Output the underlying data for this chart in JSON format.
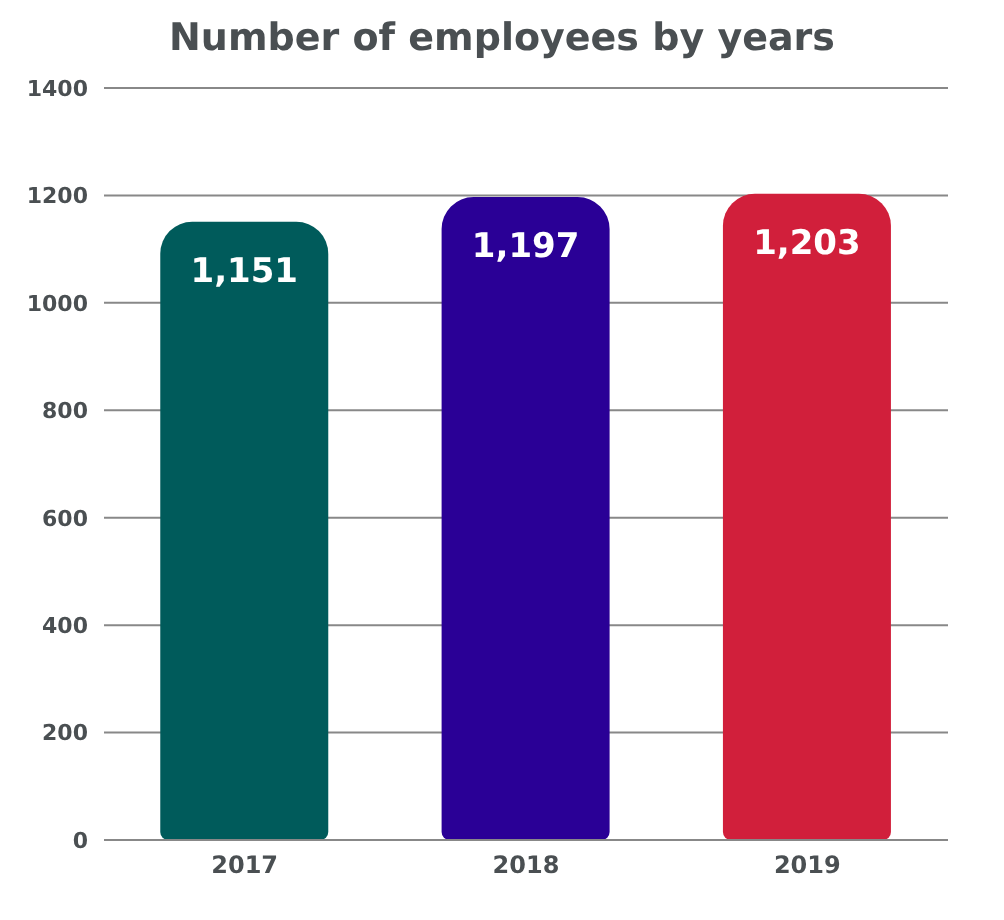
{
  "chart_data": {
    "type": "bar",
    "title": "Number of employees by years",
    "categories": [
      "2017",
      "2018",
      "2019"
    ],
    "values": [
      1151,
      1197,
      1203
    ],
    "colors": [
      "#005b5b",
      "#2a0096",
      "#d11f3b"
    ],
    "value_labels": [
      "1,151",
      "1,197",
      "1,203"
    ],
    "ylim": [
      0,
      1400
    ],
    "yticks": [
      0,
      200,
      400,
      600,
      800,
      1000,
      1200,
      1400
    ],
    "grid": "y"
  }
}
